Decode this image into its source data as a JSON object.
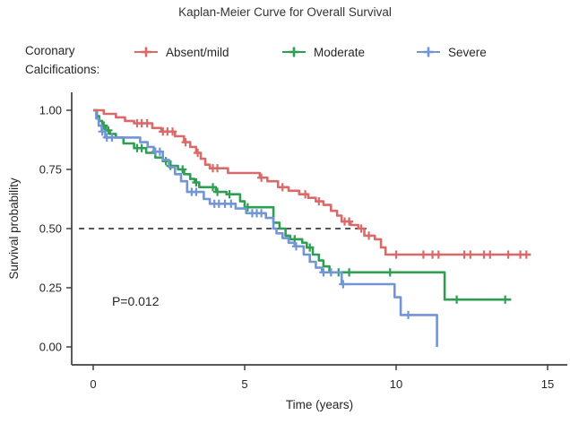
{
  "figure": {
    "title": "Kaplan-Meier Curve for Overall Survival"
  },
  "legend": {
    "title_lines": [
      "Coronary",
      "Calcifications:"
    ]
  },
  "chart_data": {
    "type": "line",
    "variant": "kaplan-meier-step",
    "title": "Kaplan-Meier Curve for Overall Survival",
    "xlabel": "Time (years)",
    "ylabel": "Survival probability",
    "xlim": [
      0,
      15
    ],
    "ylim": [
      0,
      1
    ],
    "xticks": [
      0,
      5,
      10,
      15
    ],
    "xtick_labels": [
      "0",
      "5",
      "10",
      "15"
    ],
    "yticks": [
      1.0,
      0.75,
      0.5,
      0.25,
      0.0
    ],
    "ytick_labels": [
      "1.00",
      "0.75",
      "0.50",
      "0.25",
      "0.00"
    ],
    "grid": false,
    "legend_position": "top",
    "median_line": {
      "y": 0.5,
      "x_start": -0.47,
      "x_end": 9.02,
      "style": "dashed",
      "color": "#3f3f3f"
    },
    "annotations": [
      {
        "text": "P=0.012",
        "x": 0.62,
        "y": 0.175
      }
    ],
    "axis_color": "#404040",
    "series": [
      {
        "name": "Absent/mild",
        "color": "#d96a6a",
        "points": [
          [
            0,
            1.0
          ],
          [
            0.35,
            0.985
          ],
          [
            0.75,
            0.97
          ],
          [
            1.05,
            0.955
          ],
          [
            1.35,
            0.945
          ],
          [
            1.95,
            0.925
          ],
          [
            2.25,
            0.91
          ],
          [
            2.7,
            0.89
          ],
          [
            3.0,
            0.865
          ],
          [
            3.2,
            0.845
          ],
          [
            3.4,
            0.82
          ],
          [
            3.55,
            0.795
          ],
          [
            3.7,
            0.77
          ],
          [
            3.85,
            0.755
          ],
          [
            4.45,
            0.735
          ],
          [
            5.5,
            0.715
          ],
          [
            5.75,
            0.7
          ],
          [
            6.1,
            0.675
          ],
          [
            6.45,
            0.66
          ],
          [
            6.8,
            0.645
          ],
          [
            7.1,
            0.63
          ],
          [
            7.35,
            0.615
          ],
          [
            7.6,
            0.6
          ],
          [
            7.85,
            0.575
          ],
          [
            8.05,
            0.555
          ],
          [
            8.2,
            0.53
          ],
          [
            8.5,
            0.515
          ],
          [
            8.75,
            0.5
          ],
          [
            8.95,
            0.47
          ],
          [
            9.3,
            0.455
          ],
          [
            9.5,
            0.42
          ],
          [
            9.65,
            0.39
          ],
          [
            14.45,
            0.39
          ]
        ],
        "censor_times": [
          1.45,
          1.6,
          1.78,
          2.3,
          2.45,
          2.62,
          3.05,
          3.45,
          3.95,
          4.1,
          5.55,
          6.25,
          7.0,
          7.45,
          8.3,
          8.45,
          8.85,
          9.1,
          10.0,
          10.9,
          11.2,
          11.4,
          12.25,
          12.45,
          12.9,
          13.1,
          13.7,
          14.1,
          14.3
        ]
      },
      {
        "name": "Moderate",
        "color": "#2f9e53",
        "points": [
          [
            0,
            1.0
          ],
          [
            0.12,
            0.975
          ],
          [
            0.2,
            0.955
          ],
          [
            0.3,
            0.935
          ],
          [
            0.42,
            0.915
          ],
          [
            0.55,
            0.9
          ],
          [
            0.75,
            0.885
          ],
          [
            1.0,
            0.86
          ],
          [
            1.35,
            0.84
          ],
          [
            1.75,
            0.82
          ],
          [
            2.05,
            0.8
          ],
          [
            2.3,
            0.785
          ],
          [
            2.55,
            0.765
          ],
          [
            2.8,
            0.75
          ],
          [
            3.0,
            0.73
          ],
          [
            3.2,
            0.71
          ],
          [
            3.35,
            0.695
          ],
          [
            3.5,
            0.675
          ],
          [
            4.05,
            0.655
          ],
          [
            4.4,
            0.645
          ],
          [
            4.85,
            0.615
          ],
          [
            5.0,
            0.59
          ],
          [
            5.95,
            0.525
          ],
          [
            6.15,
            0.5
          ],
          [
            6.35,
            0.47
          ],
          [
            6.5,
            0.455
          ],
          [
            6.9,
            0.44
          ],
          [
            7.05,
            0.42
          ],
          [
            7.25,
            0.39
          ],
          [
            7.45,
            0.365
          ],
          [
            7.6,
            0.34
          ],
          [
            7.8,
            0.315
          ],
          [
            11.6,
            0.2
          ],
          [
            13.8,
            0.2
          ]
        ],
        "censor_times": [
          0.35,
          0.5,
          1.45,
          1.6,
          2.4,
          2.55,
          2.95,
          3.4,
          3.95,
          4.1,
          4.5,
          5.1,
          6.65,
          7.15,
          8.1,
          8.45,
          9.8,
          12.0,
          13.6
        ]
      },
      {
        "name": "Severe",
        "color": "#7295d6",
        "points": [
          [
            0,
            1.0
          ],
          [
            0.1,
            0.965
          ],
          [
            0.18,
            0.935
          ],
          [
            0.28,
            0.91
          ],
          [
            0.4,
            0.885
          ],
          [
            1.55,
            0.865
          ],
          [
            1.8,
            0.845
          ],
          [
            2.0,
            0.825
          ],
          [
            2.3,
            0.79
          ],
          [
            2.5,
            0.76
          ],
          [
            2.7,
            0.73
          ],
          [
            2.9,
            0.7
          ],
          [
            3.1,
            0.655
          ],
          [
            3.65,
            0.625
          ],
          [
            3.85,
            0.605
          ],
          [
            4.7,
            0.585
          ],
          [
            5.05,
            0.565
          ],
          [
            5.7,
            0.545
          ],
          [
            5.95,
            0.5
          ],
          [
            6.05,
            0.48
          ],
          [
            6.25,
            0.46
          ],
          [
            6.45,
            0.44
          ],
          [
            6.65,
            0.425
          ],
          [
            6.95,
            0.39
          ],
          [
            7.15,
            0.36
          ],
          [
            7.35,
            0.335
          ],
          [
            7.55,
            0.315
          ],
          [
            8.2,
            0.265
          ],
          [
            9.95,
            0.21
          ],
          [
            10.15,
            0.135
          ],
          [
            11.35,
            0.0
          ]
        ],
        "censor_times": [
          0.3,
          0.45,
          0.62,
          2.05,
          2.2,
          3.25,
          3.4,
          4.0,
          4.15,
          4.35,
          4.55,
          5.25,
          5.4,
          5.55,
          6.7,
          7.6,
          7.85,
          8.25,
          10.4
        ]
      }
    ]
  }
}
